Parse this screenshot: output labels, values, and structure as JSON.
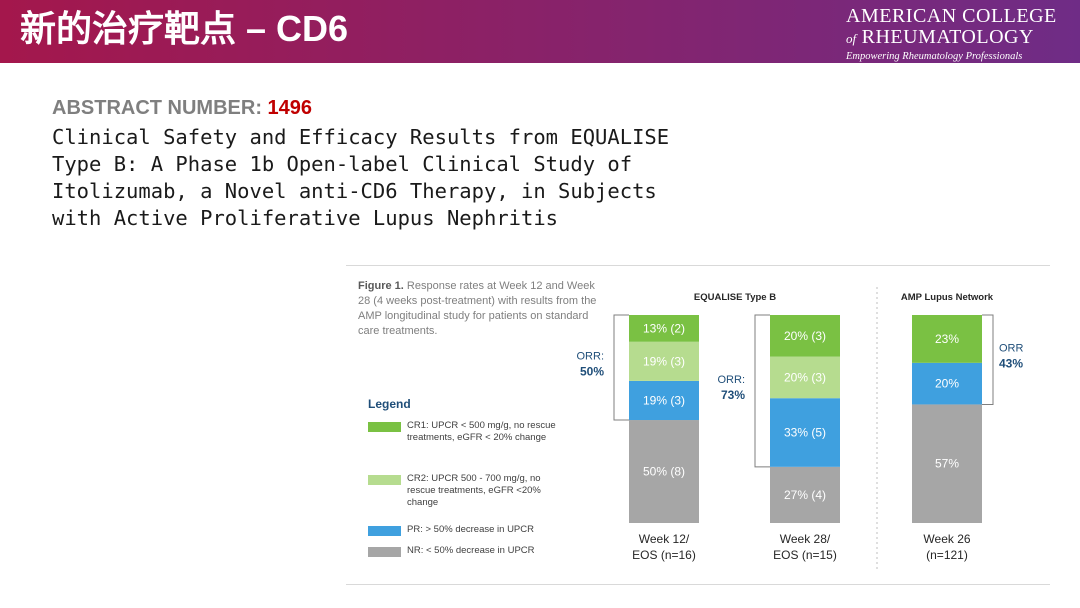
{
  "header": {
    "title": "新的治疗靶点 – CD6",
    "logo": {
      "line1": "AMERICAN COLLEGE",
      "line2_prefix": "of",
      "line2": "RHEUMATOLOGY",
      "tagline": "Empowering Rheumatology Professionals"
    }
  },
  "abstract": {
    "label": "ABSTRACT NUMBER:",
    "number": "1496",
    "title_lines": [
      "Clinical Safety and Efficacy Results from EQUALISE",
      "Type B: A Phase 1b Open-label Clinical Study of",
      "Itolizumab, a Novel anti-CD6 Therapy, in Subjects",
      "with Active Proliferative Lupus Nephritis"
    ]
  },
  "figure": {
    "caption_bold": "Figure 1.",
    "caption_text": "Response rates at Week 12 and Week 28 (4 weeks post-treatment) with results from the AMP longitudinal study for patients on standard care treatments.",
    "legend_title": "Legend",
    "legend": [
      {
        "text": "CR1: UPCR < 500 mg/g, no rescue treatments, eGFR < 20% change",
        "color": "#7ac143"
      },
      {
        "text": "CR2: UPCR 500 - 700 mg/g, no rescue treatments, eGFR <20% change",
        "color": "#b6dc8f"
      },
      {
        "text": "PR: > 50% decrease in UPCR",
        "color": "#3fa0df"
      },
      {
        "text": "NR: < 50% decrease in UPCR",
        "color": "#a6a6a6"
      }
    ]
  },
  "chart_data": {
    "type": "bar",
    "stacked": true,
    "group_labels": [
      "EQUALISE Type B",
      "AMP Lupus Network"
    ],
    "categories": [
      {
        "line1": "Week 12/",
        "line2": "EOS (n=16)",
        "group": 0
      },
      {
        "line1": "Week 28/",
        "line2": "EOS (n=15)",
        "group": 0
      },
      {
        "line1": "Week 26",
        "line2": "(n=121)",
        "group": 1
      }
    ],
    "series": [
      {
        "name": "NR",
        "color": "#a6a6a6",
        "values": [
          50,
          27,
          57
        ],
        "labels": [
          "50% (8)",
          "27% (4)",
          "57%"
        ]
      },
      {
        "name": "PR",
        "color": "#3fa0df",
        "values": [
          19,
          33,
          20
        ],
        "labels": [
          "19% (3)",
          "33% (5)",
          "20%"
        ]
      },
      {
        "name": "CR2",
        "color": "#b6dc8f",
        "values": [
          19,
          20,
          0
        ],
        "labels": [
          "19% (3)",
          "20% (3)",
          ""
        ]
      },
      {
        "name": "CR1",
        "color": "#7ac143",
        "values": [
          13,
          20,
          23
        ],
        "labels": [
          "13% (2)",
          "20% (3)",
          "23%"
        ]
      }
    ],
    "orr": [
      {
        "label": "ORR:",
        "value": "50%"
      },
      {
        "label": "ORR:",
        "value": "73%"
      },
      {
        "label": "ORR",
        "value": "43%"
      }
    ]
  }
}
